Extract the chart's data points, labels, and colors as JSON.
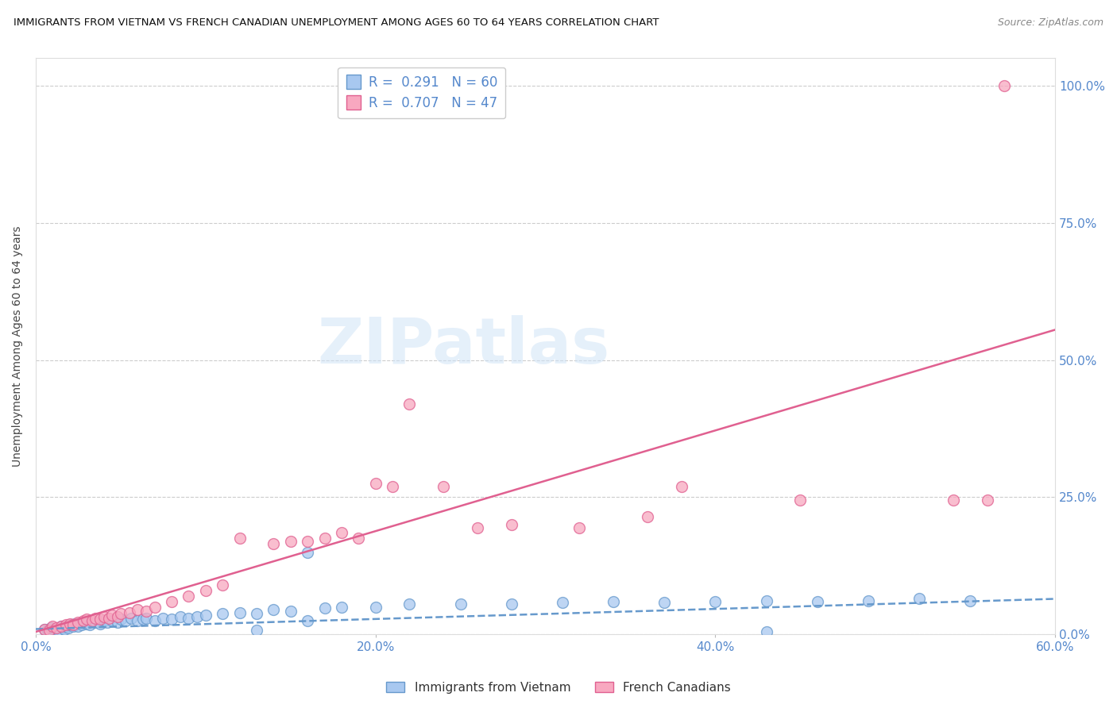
{
  "title": "IMMIGRANTS FROM VIETNAM VS FRENCH CANADIAN UNEMPLOYMENT AMONG AGES 60 TO 64 YEARS CORRELATION CHART",
  "source": "Source: ZipAtlas.com",
  "ylabel": "Unemployment Among Ages 60 to 64 years",
  "xlim": [
    0.0,
    0.6
  ],
  "ylim": [
    0.0,
    1.05
  ],
  "blue_R": 0.291,
  "blue_N": 60,
  "pink_R": 0.707,
  "pink_N": 47,
  "blue_color": "#A8C8F0",
  "pink_color": "#F8A8C0",
  "blue_edge_color": "#6699CC",
  "pink_edge_color": "#E06090",
  "blue_line_color": "#6699CC",
  "pink_line_color": "#E06090",
  "watermark_text": "ZIPatlas",
  "legend_label_blue": "Immigrants from Vietnam",
  "legend_label_pink": "French Canadians",
  "blue_scatter_x": [
    0.005,
    0.007,
    0.009,
    0.011,
    0.013,
    0.015,
    0.016,
    0.017,
    0.018,
    0.019,
    0.02,
    0.022,
    0.023,
    0.025,
    0.027,
    0.03,
    0.032,
    0.035,
    0.038,
    0.04,
    0.042,
    0.045,
    0.048,
    0.05,
    0.053,
    0.056,
    0.06,
    0.063,
    0.065,
    0.07,
    0.075,
    0.08,
    0.085,
    0.09,
    0.095,
    0.1,
    0.11,
    0.12,
    0.13,
    0.14,
    0.15,
    0.16,
    0.17,
    0.18,
    0.2,
    0.22,
    0.25,
    0.28,
    0.31,
    0.34,
    0.37,
    0.4,
    0.43,
    0.46,
    0.49,
    0.52,
    0.55,
    0.16,
    0.13,
    0.43
  ],
  "blue_scatter_y": [
    0.01,
    0.008,
    0.012,
    0.01,
    0.008,
    0.015,
    0.012,
    0.01,
    0.015,
    0.012,
    0.018,
    0.015,
    0.02,
    0.015,
    0.018,
    0.02,
    0.018,
    0.022,
    0.02,
    0.025,
    0.022,
    0.025,
    0.022,
    0.028,
    0.025,
    0.03,
    0.025,
    0.028,
    0.03,
    0.025,
    0.03,
    0.028,
    0.032,
    0.03,
    0.032,
    0.035,
    0.038,
    0.04,
    0.038,
    0.045,
    0.042,
    0.15,
    0.048,
    0.05,
    0.05,
    0.055,
    0.055,
    0.055,
    0.058,
    0.06,
    0.058,
    0.06,
    0.062,
    0.06,
    0.062,
    0.065,
    0.062,
    0.025,
    0.008,
    0.005
  ],
  "pink_scatter_x": [
    0.005,
    0.008,
    0.01,
    0.012,
    0.015,
    0.018,
    0.02,
    0.022,
    0.025,
    0.028,
    0.03,
    0.033,
    0.035,
    0.038,
    0.04,
    0.043,
    0.045,
    0.048,
    0.05,
    0.055,
    0.06,
    0.065,
    0.07,
    0.08,
    0.09,
    0.1,
    0.11,
    0.12,
    0.14,
    0.15,
    0.16,
    0.17,
    0.18,
    0.19,
    0.2,
    0.21,
    0.22,
    0.24,
    0.26,
    0.28,
    0.32,
    0.36,
    0.38,
    0.45,
    0.54,
    0.56,
    0.57
  ],
  "pink_scatter_y": [
    0.01,
    0.008,
    0.015,
    0.012,
    0.015,
    0.018,
    0.02,
    0.018,
    0.022,
    0.025,
    0.028,
    0.025,
    0.03,
    0.028,
    0.032,
    0.03,
    0.035,
    0.032,
    0.038,
    0.04,
    0.045,
    0.042,
    0.05,
    0.06,
    0.07,
    0.08,
    0.09,
    0.175,
    0.165,
    0.17,
    0.17,
    0.175,
    0.185,
    0.175,
    0.275,
    0.27,
    0.42,
    0.27,
    0.195,
    0.2,
    0.195,
    0.215,
    0.27,
    0.245,
    0.245,
    0.245,
    1.0
  ],
  "blue_trend_x": [
    0.0,
    0.6
  ],
  "blue_trend_y": [
    0.01,
    0.065
  ],
  "pink_trend_x": [
    0.0,
    0.6
  ],
  "pink_trend_y": [
    0.005,
    0.555
  ]
}
